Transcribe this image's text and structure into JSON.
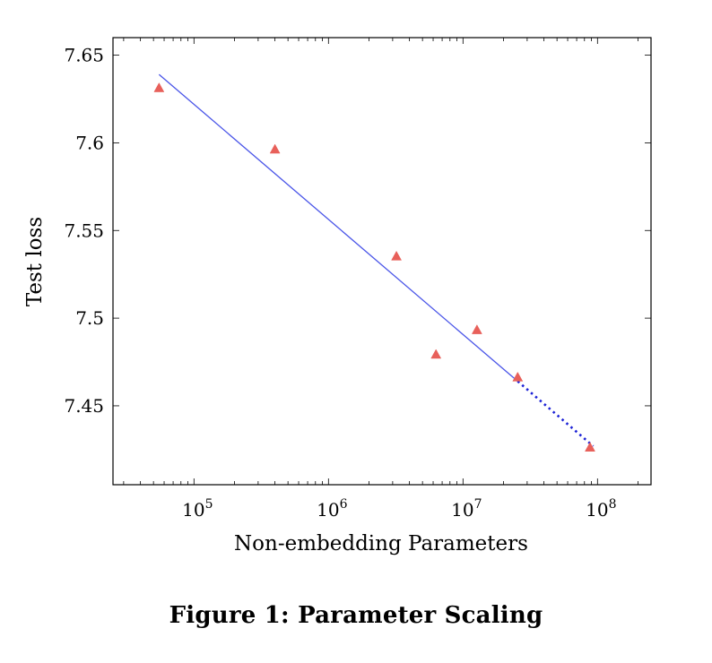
{
  "chart_data": {
    "type": "scatter",
    "xlabel": "Non-embedding Parameters",
    "ylabel": "Test loss",
    "xscale": "log",
    "xlim": [
      25000,
      250000000
    ],
    "ylim": [
      7.405,
      7.66
    ],
    "grid": false,
    "legend": "none",
    "x_ticks": [
      {
        "base": "10",
        "exp": "5",
        "value": 100000
      },
      {
        "base": "10",
        "exp": "6",
        "value": 1000000
      },
      {
        "base": "10",
        "exp": "7",
        "value": 10000000
      },
      {
        "base": "10",
        "exp": "8",
        "value": 100000000
      }
    ],
    "y_ticks": [
      {
        "label": "7.45",
        "value": 7.45
      },
      {
        "label": "7.5",
        "value": 7.5
      },
      {
        "label": "7.55",
        "value": 7.55
      },
      {
        "label": "7.6",
        "value": 7.6
      },
      {
        "label": "7.65",
        "value": 7.65
      }
    ],
    "series": [
      {
        "marker": "triangle",
        "color": "#e8605a",
        "points": [
          {
            "x": 55000,
            "y": 7.631
          },
          {
            "x": 400000,
            "y": 7.596
          },
          {
            "x": 3200000,
            "y": 7.535
          },
          {
            "x": 6300000,
            "y": 7.479
          },
          {
            "x": 12700000,
            "y": 7.493
          },
          {
            "x": 25500000,
            "y": 7.466
          },
          {
            "x": 88000000,
            "y": 7.426
          }
        ]
      }
    ],
    "fit_line": {
      "color": "#4a55e8",
      "solid": [
        {
          "x": 55000,
          "y": 7.639
        },
        {
          "x": 25500000,
          "y": 7.464
        }
      ],
      "dotted_color": "#1c22d6",
      "dotted": [
        {
          "x": 25500000,
          "y": 7.464
        },
        {
          "x": 93000000,
          "y": 7.427
        }
      ]
    }
  },
  "figure": {
    "caption": "Figure 1: Parameter Scaling"
  }
}
